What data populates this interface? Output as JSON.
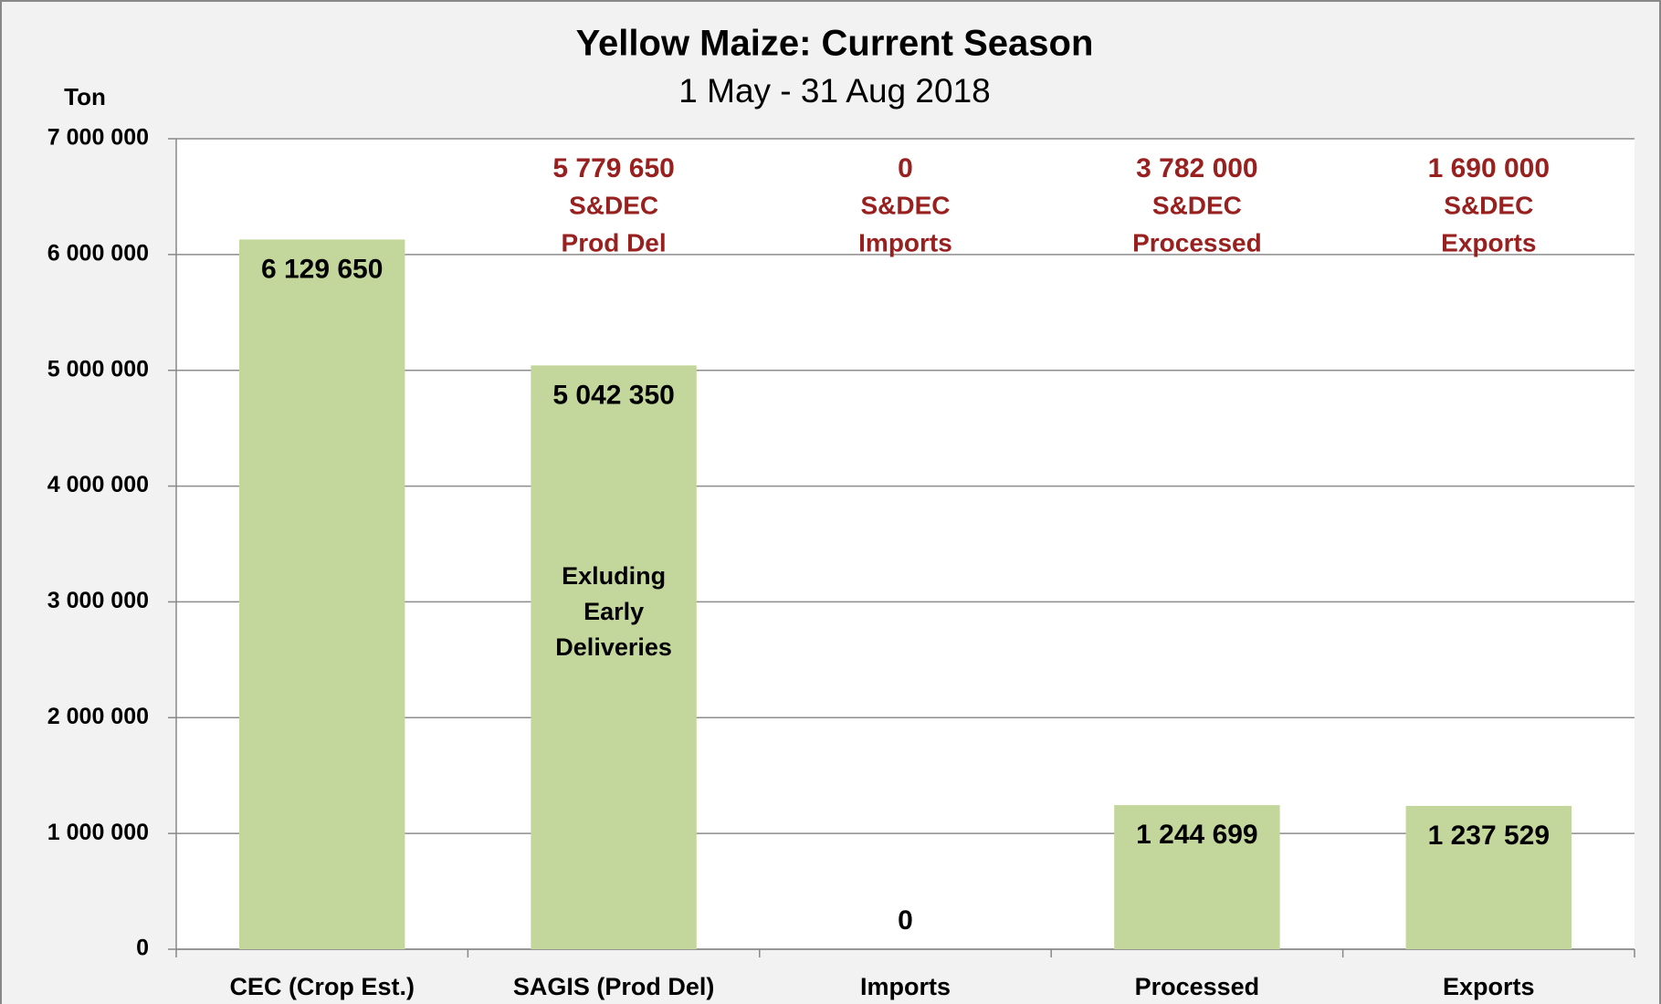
{
  "chart_data": {
    "type": "bar",
    "title": "Yellow Maize: Current Season",
    "subtitle": "1 May - 31 Aug 2018",
    "y_axis_label": "Ton",
    "categories": [
      "CEC (Crop Est.)",
      "SAGIS (Prod Del)",
      "Imports",
      "Processed",
      "Exports"
    ],
    "values": [
      6129650,
      5042350,
      0,
      1244699,
      1237529
    ],
    "value_labels": [
      "6 129 650",
      "5 042 350",
      "0",
      "1 244 699",
      "1 237 529"
    ],
    "color": "#c3d69b",
    "ylim": [
      0,
      7000000
    ],
    "yticks": [
      0,
      {
        "value": 1000000,
        "label": "1 000 000"
      },
      {
        "value": 2000000,
        "label": "2 000 000"
      },
      {
        "value": 3000000,
        "label": "3 000 000"
      },
      {
        "value": 4000000,
        "label": "4 000 000"
      },
      {
        "value": 5000000,
        "label": "5 000 000"
      },
      {
        "value": 6000000,
        "label": "6 000 000"
      },
      {
        "value": 7000000,
        "label": "7 000 000"
      }
    ],
    "grid": true,
    "annotations": [
      null,
      [
        "5 779 650",
        "S&DEC",
        "Prod Del"
      ],
      [
        "0",
        "S&DEC",
        "Imports"
      ],
      [
        "3 782 000",
        "S&DEC",
        "Processed"
      ],
      [
        "1 690 000",
        "S&DEC",
        "Exports"
      ]
    ],
    "bar_note": [
      "Exluding",
      "Early",
      "Deliveries"
    ]
  }
}
